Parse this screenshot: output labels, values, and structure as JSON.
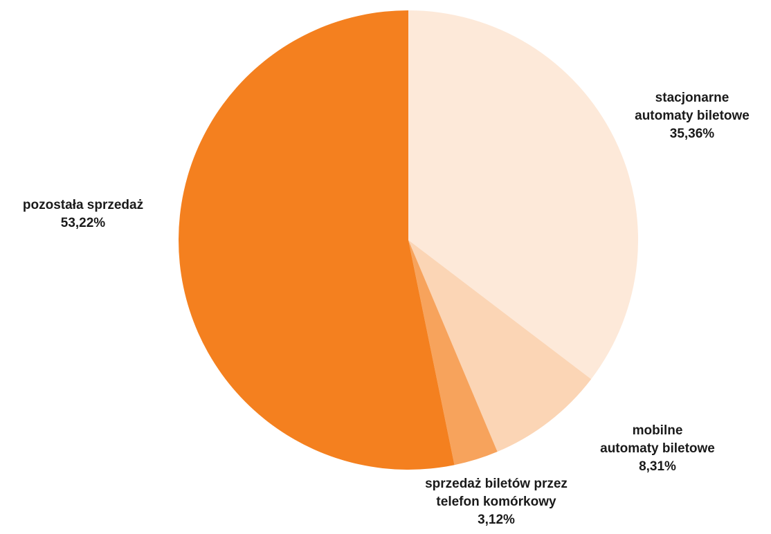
{
  "chart_data": {
    "type": "pie",
    "title": "",
    "start_angle_deg": 0,
    "direction": "clockwise",
    "legend": "none",
    "slices": [
      {
        "label_lines": [
          "stacjonarne",
          "automaty biletowe"
        ],
        "value": 35.36,
        "value_label": "35,36%",
        "color": "#FDE9D9"
      },
      {
        "label_lines": [
          "mobilne",
          "automaty biletowe"
        ],
        "value": 8.31,
        "value_label": "8,31%",
        "color": "#FBD5B5"
      },
      {
        "label_lines": [
          "sprzedaż biletów przez",
          "telefon komórkowy"
        ],
        "value": 3.12,
        "value_label": "3,12%",
        "color": "#F7A35C"
      },
      {
        "label_lines": [
          "pozostała sprzedaż"
        ],
        "value": 53.22,
        "value_label": "53,22%",
        "color": "#F4801F"
      }
    ]
  }
}
